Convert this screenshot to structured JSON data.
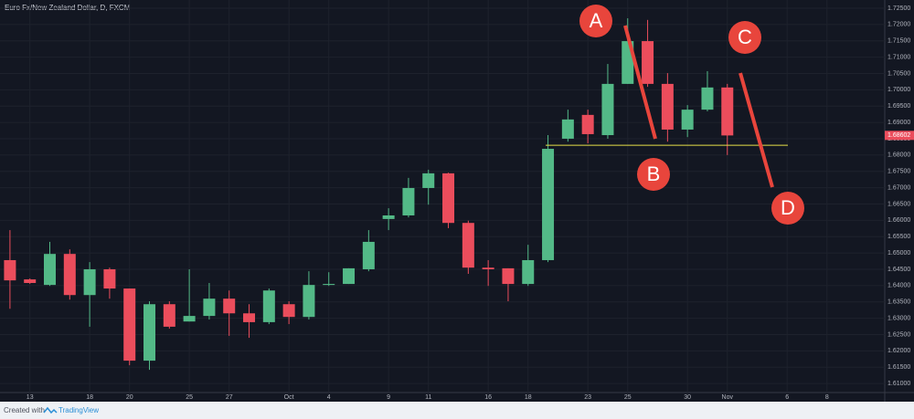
{
  "chart_data": {
    "type": "candlestick",
    "title": "Euro Fx/New Zealand Dollar, D, FXCM",
    "open": [
      1.6478,
      1.6419,
      1.6402,
      1.6497,
      1.6371,
      1.645,
      1.6391,
      1.617,
      1.6343,
      1.629,
      1.6307,
      1.636,
      1.6315,
      1.6288,
      1.6343,
      1.6304,
      1.6402,
      1.6405,
      1.645,
      1.6604,
      1.6615,
      1.6699,
      1.6744,
      1.6592,
      1.6455,
      1.6453,
      1.6405,
      1.6478,
      1.685,
      1.6923,
      1.6861,
      1.7018,
      1.7149,
      1.7018,
      1.6878,
      1.6939,
      1.7007
    ],
    "high": [
      1.657,
      1.6422,
      1.6534,
      1.6511,
      1.6472,
      1.6455,
      1.6391,
      1.6352,
      1.6352,
      1.645,
      1.6408,
      1.6385,
      1.6343,
      1.6391,
      1.6352,
      1.6444,
      1.6441,
      1.6453,
      1.657,
      1.6637,
      1.673,
      1.6755,
      1.6746,
      1.6599,
      1.6478,
      1.6453,
      1.6525,
      1.6861,
      1.6939,
      1.6939,
      1.7079,
      1.7219,
      1.7214,
      1.7051,
      1.6953,
      1.7057,
      1.7018
    ],
    "low": [
      1.6329,
      1.6405,
      1.6399,
      1.6357,
      1.6274,
      1.636,
      1.6156,
      1.6142,
      1.6268,
      1.629,
      1.6296,
      1.6246,
      1.624,
      1.6282,
      1.6282,
      1.6296,
      1.6399,
      1.6405,
      1.6444,
      1.657,
      1.6609,
      1.6648,
      1.6576,
      1.6436,
      1.6399,
      1.6352,
      1.6399,
      1.6472,
      1.6841,
      1.6836,
      1.685,
      1.7018,
      1.7009,
      1.6841,
      1.6855,
      1.6934,
      1.68
    ],
    "close": [
      1.6416,
      1.6408,
      1.6497,
      1.6371,
      1.645,
      1.6391,
      1.617,
      1.6343,
      1.6274,
      1.6307,
      1.636,
      1.6315,
      1.6288,
      1.6385,
      1.6304,
      1.6402,
      1.6405,
      1.6453,
      1.6534,
      1.6615,
      1.6699,
      1.6744,
      1.6592,
      1.6455,
      1.645,
      1.6405,
      1.6478,
      1.6819,
      1.6909,
      1.6864,
      1.7018,
      1.7149,
      1.7018,
      1.6878,
      1.6939,
      1.7007,
      1.686
    ],
    "up_color": "#53b987",
    "down_color": "#eb4d5c",
    "last_price": 1.68602,
    "horizontal_line": {
      "value": 1.683,
      "color": "#e6e04a"
    },
    "annotations": [
      "A",
      "B",
      "C",
      "D"
    ],
    "annotation_color": "#e8453c",
    "xlim": [
      -0.5,
      43.9
    ],
    "xticks": [
      {
        "value": 1,
        "label": "13"
      },
      {
        "value": 4,
        "label": "18"
      },
      {
        "value": 6,
        "label": "20"
      },
      {
        "value": 9,
        "label": "25"
      },
      {
        "value": 11,
        "label": "27"
      },
      {
        "value": 14,
        "label": "Oct"
      },
      {
        "value": 16,
        "label": "4"
      },
      {
        "value": 19,
        "label": "9"
      },
      {
        "value": 21,
        "label": "11"
      },
      {
        "value": 24,
        "label": "16"
      },
      {
        "value": 26,
        "label": "18"
      },
      {
        "value": 29,
        "label": "23"
      },
      {
        "value": 31,
        "label": "25"
      },
      {
        "value": 34,
        "label": "30"
      },
      {
        "value": 36,
        "label": "Nov"
      },
      {
        "value": 39,
        "label": "6"
      },
      {
        "value": 41,
        "label": "8"
      }
    ],
    "ylim": [
      1.605,
      1.7275
    ],
    "yticks": [
      {
        "value": 1.61,
        "label": "1.61000"
      },
      {
        "value": 1.615,
        "label": "1.61500"
      },
      {
        "value": 1.62,
        "label": "1.62000"
      },
      {
        "value": 1.625,
        "label": "1.62500"
      },
      {
        "value": 1.63,
        "label": "1.63000"
      },
      {
        "value": 1.635,
        "label": "1.63500"
      },
      {
        "value": 1.64,
        "label": "1.64000"
      },
      {
        "value": 1.645,
        "label": "1.64500"
      },
      {
        "value": 1.65,
        "label": "1.65000"
      },
      {
        "value": 1.655,
        "label": "1.65500"
      },
      {
        "value": 1.66,
        "label": "1.66000"
      },
      {
        "value": 1.665,
        "label": "1.66500"
      },
      {
        "value": 1.67,
        "label": "1.67000"
      },
      {
        "value": 1.675,
        "label": "1.67500"
      },
      {
        "value": 1.68,
        "label": "1.68000"
      },
      {
        "value": 1.685,
        "label": "1.68500"
      },
      {
        "value": 1.69,
        "label": "1.69000"
      },
      {
        "value": 1.695,
        "label": "1.69500"
      },
      {
        "value": 1.7,
        "label": "1.70000"
      },
      {
        "value": 1.705,
        "label": "1.70500"
      },
      {
        "value": 1.71,
        "label": "1.71000"
      },
      {
        "value": 1.715,
        "label": "1.71500"
      },
      {
        "value": 1.72,
        "label": "1.72000"
      },
      {
        "value": 1.725,
        "label": "1.72500"
      }
    ],
    "grid": true
  },
  "footer": {
    "created_with": "Created with",
    "brand": "TradingView"
  }
}
